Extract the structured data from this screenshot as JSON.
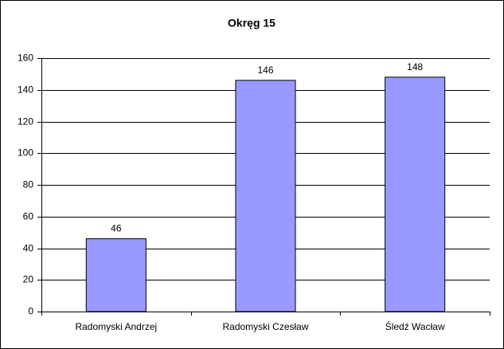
{
  "chart_data": {
    "type": "bar",
    "title": "Okręg 15",
    "categories": [
      "Radomyski Andrzej",
      "Radomyski Czesław",
      "Śledź Wacław"
    ],
    "values": [
      46,
      146,
      148
    ],
    "color": "#9999ff",
    "ylim": [
      0,
      160
    ],
    "yticks": [
      0,
      20,
      40,
      60,
      80,
      100,
      120,
      140,
      160
    ],
    "grid": true
  }
}
